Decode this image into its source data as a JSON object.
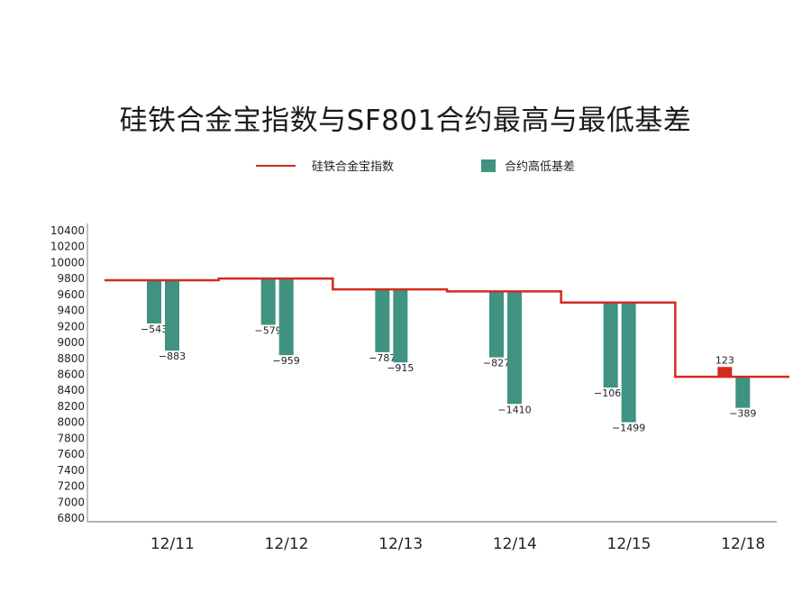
{
  "colors": {
    "index_line": "#d42a20",
    "basis_negative": "#3f9380",
    "basis_positive": "#d42a20",
    "axis": "#999999",
    "text": "#222222"
  },
  "chart_data": {
    "type": "bar",
    "title": "硅铁合金宝指数与SF801合约最高与最低基差",
    "legend": [
      {
        "name": "硅铁合金宝指数",
        "kind": "line"
      },
      {
        "name": "合约高低基差",
        "kind": "bar"
      }
    ],
    "ylim": [
      6800,
      10400
    ],
    "yticks": [
      10400,
      10200,
      10000,
      9800,
      9600,
      9400,
      9200,
      9000,
      8800,
      8600,
      8400,
      8200,
      8000,
      7800,
      7600,
      7400,
      7200,
      7000,
      6800
    ],
    "categories": [
      "12/11",
      "12/12",
      "12/13",
      "12/14",
      "12/15",
      "12/18"
    ],
    "index_values": [
      9780,
      9800,
      9665,
      9640,
      9500,
      8570
    ],
    "basis": [
      {
        "date": "12/11",
        "values": [
          -543,
          -883
        ]
      },
      {
        "date": "12/12",
        "values": [
          -579,
          -959
        ]
      },
      {
        "date": "12/13",
        "values": [
          -787,
          -915
        ]
      },
      {
        "date": "12/14",
        "values": [
          -827,
          -1410
        ]
      },
      {
        "date": "12/15",
        "values": [
          -1065,
          -1499
        ]
      },
      {
        "date": "12/18",
        "values": [
          123,
          -389
        ]
      }
    ],
    "grid": false
  }
}
